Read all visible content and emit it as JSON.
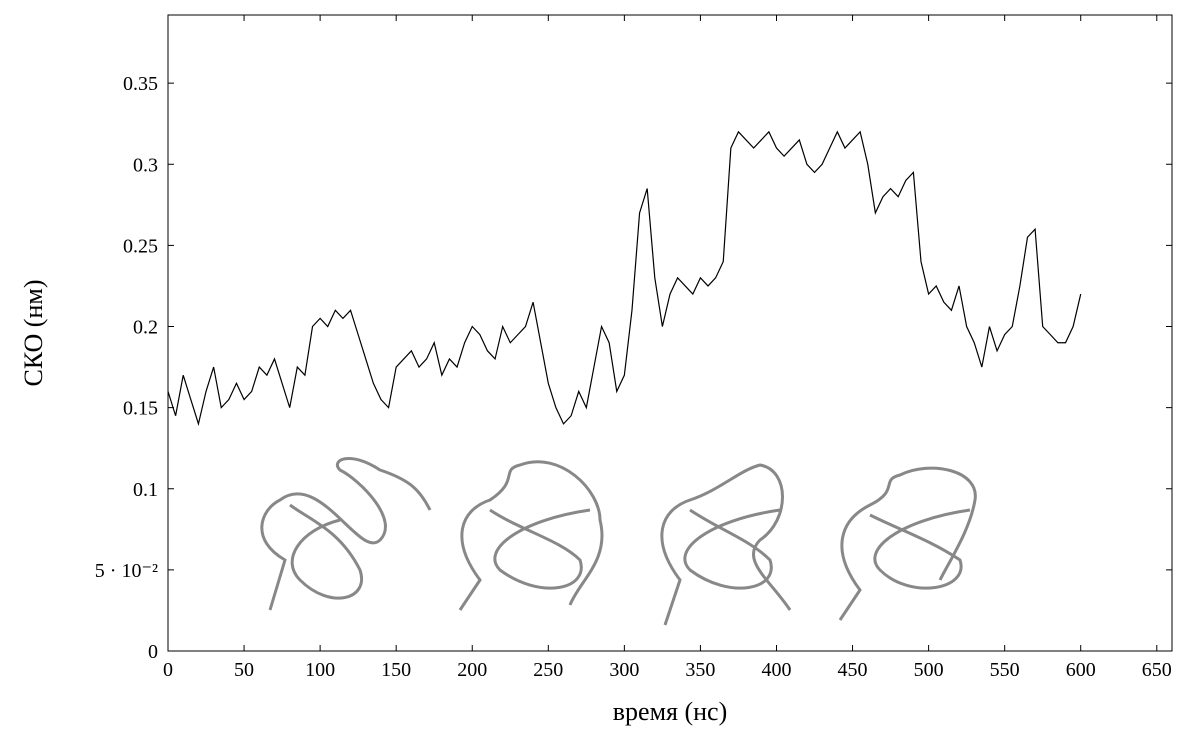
{
  "chart_data": {
    "type": "line",
    "x_label": "время (нс)",
    "y_label": "СКО (нм)",
    "xlim": [
      0,
      660
    ],
    "ylim": [
      0,
      0.392
    ],
    "xticks": [
      0,
      50,
      100,
      150,
      200,
      250,
      300,
      350,
      400,
      450,
      500,
      550,
      600,
      650
    ],
    "yticks": [
      0,
      {
        "value": 0.05,
        "label": "5 · 10⁻²"
      },
      0.1,
      0.15,
      0.2,
      0.25,
      0.3,
      0.35
    ],
    "grid": false,
    "series": [
      {
        "color": "#000000",
        "x": [
          0,
          5,
          10,
          15,
          20,
          25,
          30,
          35,
          40,
          45,
          50,
          55,
          60,
          65,
          70,
          75,
          80,
          85,
          90,
          95,
          100,
          105,
          110,
          115,
          120,
          125,
          130,
          135,
          140,
          145,
          150,
          155,
          160,
          165,
          170,
          175,
          180,
          185,
          190,
          195,
          200,
          205,
          210,
          215,
          220,
          225,
          230,
          235,
          240,
          245,
          250,
          255,
          260,
          265,
          270,
          275,
          280,
          285,
          290,
          295,
          300,
          305,
          310,
          315,
          320,
          325,
          330,
          335,
          340,
          345,
          350,
          355,
          360,
          365,
          370,
          375,
          380,
          385,
          390,
          395,
          400,
          405,
          410,
          415,
          420,
          425,
          430,
          435,
          440,
          445,
          450,
          455,
          460,
          465,
          470,
          475,
          480,
          485,
          490,
          495,
          500,
          505,
          510,
          515,
          520,
          525,
          530,
          535,
          540,
          545,
          550,
          555,
          560,
          565,
          570,
          575,
          580,
          585,
          590,
          595,
          600
        ],
        "values": [
          0.16,
          0.145,
          0.17,
          0.155,
          0.14,
          0.16,
          0.175,
          0.15,
          0.155,
          0.165,
          0.155,
          0.16,
          0.175,
          0.17,
          0.18,
          0.165,
          0.15,
          0.175,
          0.17,
          0.2,
          0.205,
          0.2,
          0.21,
          0.205,
          0.21,
          0.195,
          0.18,
          0.165,
          0.155,
          0.15,
          0.175,
          0.18,
          0.185,
          0.175,
          0.18,
          0.19,
          0.17,
          0.18,
          0.175,
          0.19,
          0.2,
          0.195,
          0.185,
          0.18,
          0.2,
          0.19,
          0.195,
          0.2,
          0.215,
          0.19,
          0.165,
          0.15,
          0.14,
          0.145,
          0.16,
          0.15,
          0.175,
          0.2,
          0.19,
          0.16,
          0.17,
          0.21,
          0.27,
          0.285,
          0.23,
          0.2,
          0.22,
          0.23,
          0.225,
          0.22,
          0.23,
          0.225,
          0.23,
          0.24,
          0.31,
          0.32,
          0.315,
          0.31,
          0.315,
          0.32,
          0.31,
          0.305,
          0.31,
          0.315,
          0.3,
          0.295,
          0.3,
          0.31,
          0.32,
          0.31,
          0.315,
          0.32,
          0.3,
          0.27,
          0.28,
          0.285,
          0.28,
          0.29,
          0.295,
          0.24,
          0.22,
          0.225,
          0.215,
          0.21,
          0.225,
          0.2,
          0.19,
          0.175,
          0.2,
          0.185,
          0.195,
          0.2,
          0.225,
          0.255,
          0.26,
          0.2,
          0.195,
          0.19,
          0.19,
          0.2,
          0.22
        ]
      }
    ]
  }
}
